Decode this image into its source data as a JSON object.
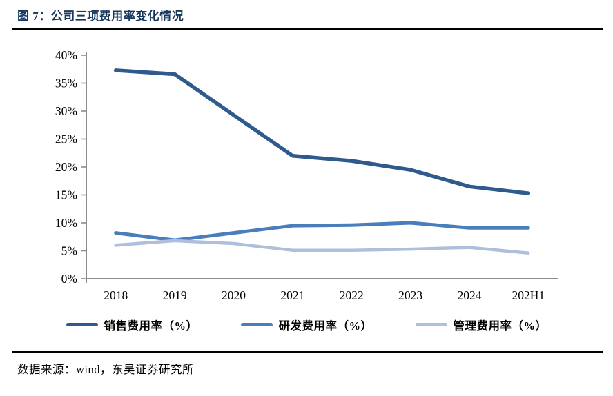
{
  "title": "图 7：公司三项费用率变化情况",
  "footer": {
    "source_text": "数据来源：wind，东吴证券研究所"
  },
  "chart_data": {
    "type": "line",
    "title": "图 7：公司三项费用率变化情况",
    "categories": [
      "2018",
      "2019",
      "2020",
      "2021",
      "2022",
      "2023",
      "2024",
      "202H1"
    ],
    "series": [
      {
        "name": "销售费用率（%）",
        "color": "#2E5A8E",
        "stroke_width": 5.5,
        "values": [
          37.3,
          36.6,
          29.3,
          22.0,
          21.1,
          19.5,
          16.5,
          15.3
        ]
      },
      {
        "name": "研发费用率（%）",
        "color": "#4A7EBB",
        "stroke_width": 5,
        "values": [
          8.2,
          6.9,
          8.2,
          9.5,
          9.6,
          10.0,
          9.1,
          9.1
        ]
      },
      {
        "name": "管理费用率（%）",
        "color": "#AEBFDB",
        "stroke_width": 4.5,
        "values": [
          6.0,
          6.8,
          6.3,
          5.1,
          5.1,
          5.3,
          5.6,
          4.6
        ]
      }
    ],
    "ylim": [
      0,
      40
    ],
    "y_tick_step": 5,
    "y_tick_format": "{v}%",
    "grid": false,
    "legend_position": "bottom",
    "axis_color": "#8C8C8C"
  },
  "colors": {
    "title": "#17375E",
    "rule": "#000000"
  }
}
